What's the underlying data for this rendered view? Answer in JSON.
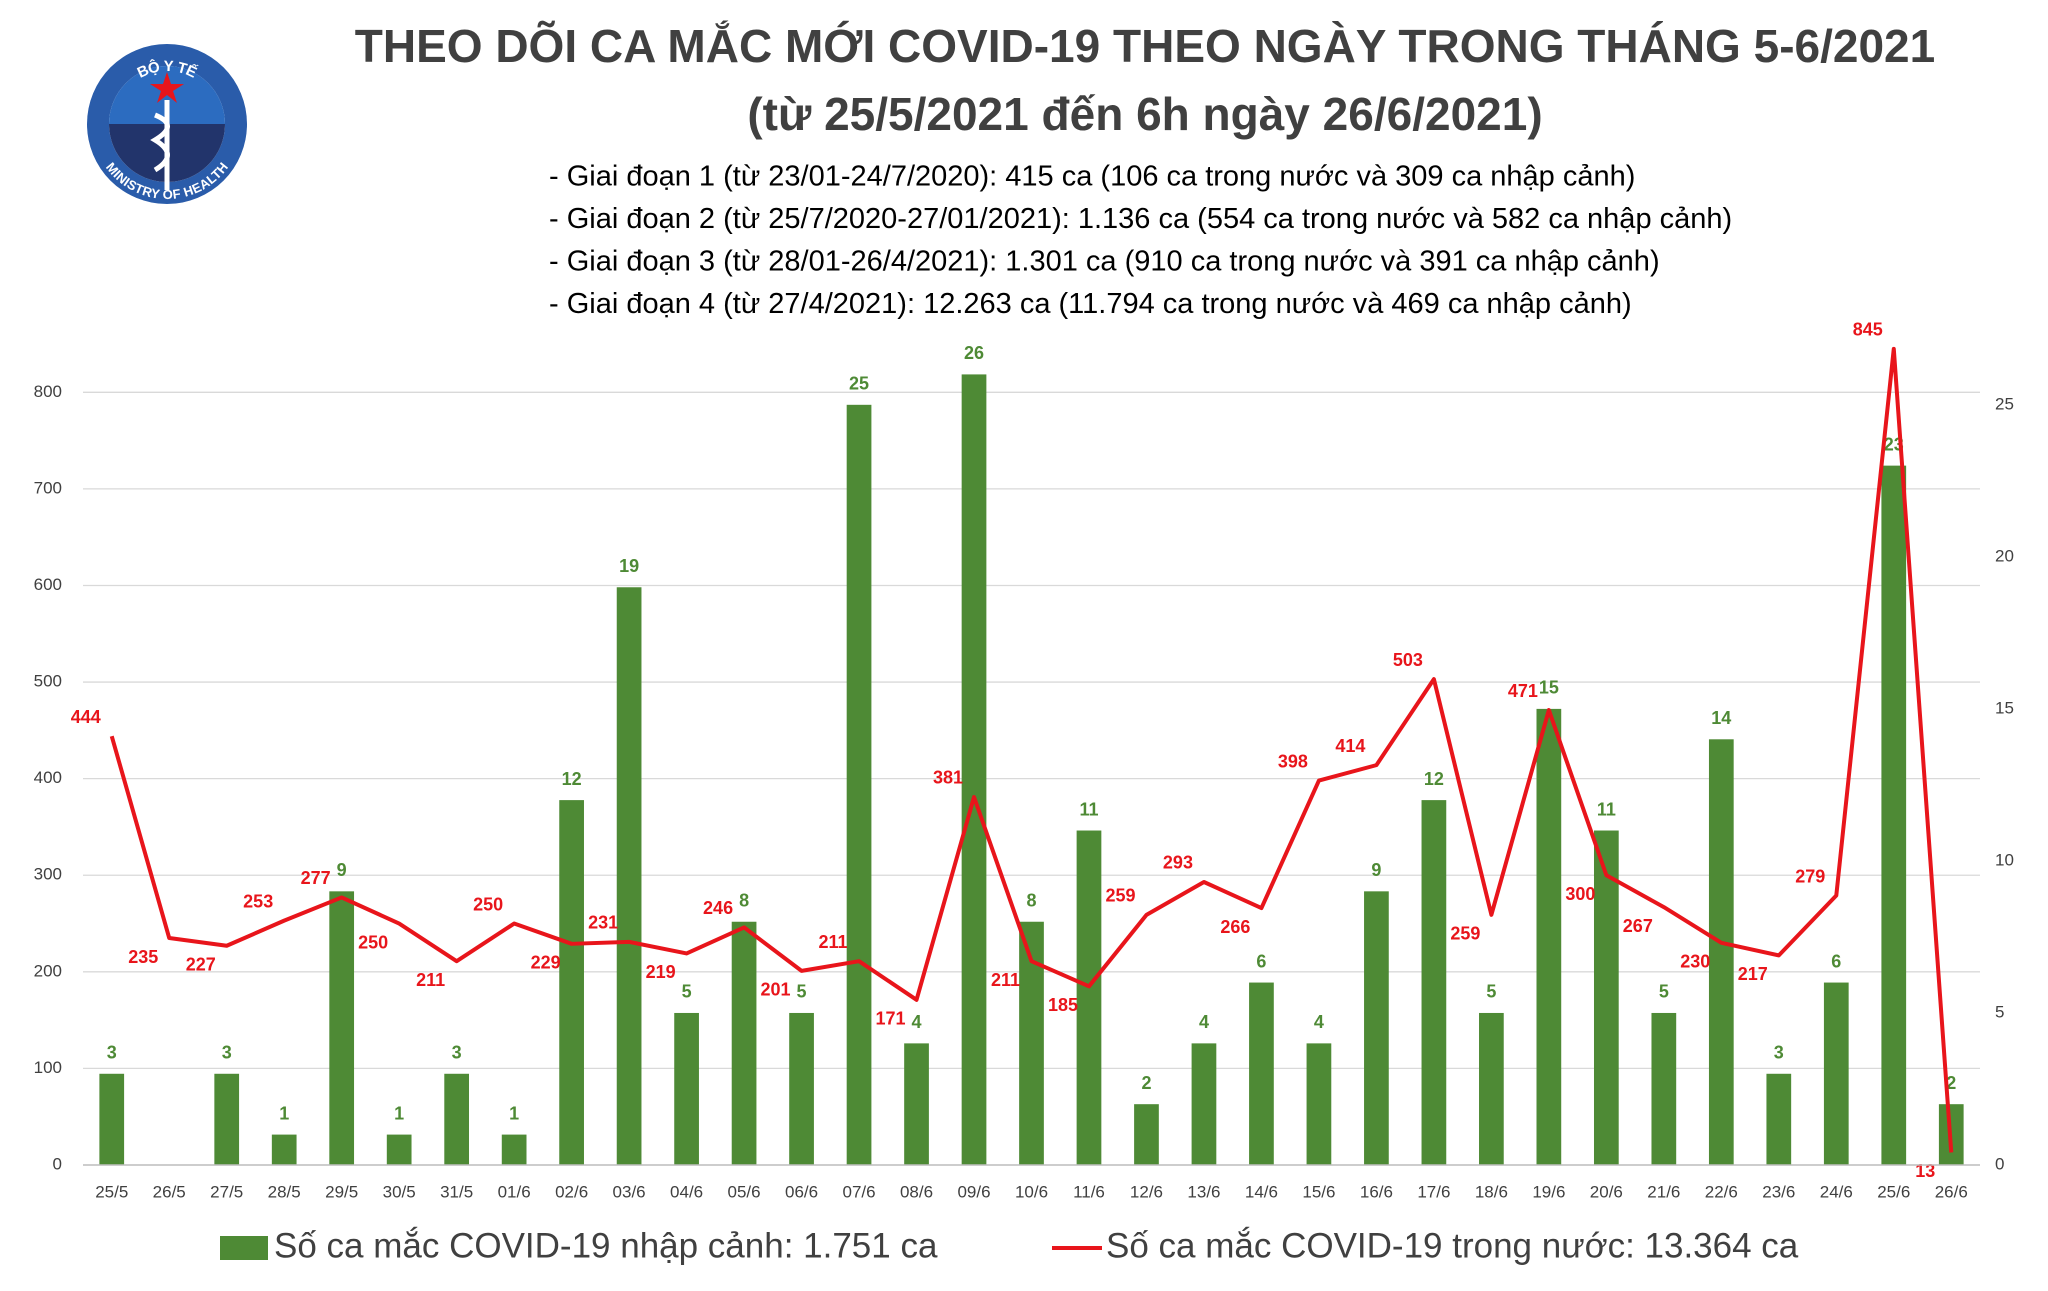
{
  "logo": {
    "top_text": "BỘ Y TẾ",
    "bottom_text": "MINISTRY OF HEALTH"
  },
  "chart_data": {
    "type": "combo",
    "title": "THEO DÕI CA MẮC MỚI COVID-19 THEO NGÀY TRONG THÁNG 5-6/2021",
    "subtitle": "(từ 25/5/2021 đến 6h ngày 26/6/2021)",
    "notes": [
      "- Giai đoạn 1 (từ 23/01-24/7/2020): 415 ca (106 ca trong nước và 309 ca nhập cảnh)",
      "- Giai đoạn 2 (từ 25/7/2020-27/01/2021): 1.136 ca (554 ca trong nước và 582 ca nhập cảnh)",
      "- Giai đoạn 3 (từ 28/01-26/4/2021): 1.301 ca (910 ca trong nước và 391 ca nhập cảnh)",
      "- Giai đoạn 4 (từ 27/4/2021): 12.263 ca (11.794 ca trong nước và 469 ca nhập cảnh)"
    ],
    "categories": [
      "25/5",
      "26/5",
      "27/5",
      "28/5",
      "29/5",
      "30/5",
      "31/5",
      "01/6",
      "02/6",
      "03/6",
      "04/6",
      "05/6",
      "06/6",
      "07/6",
      "08/6",
      "09/6",
      "10/6",
      "11/6",
      "12/6",
      "13/6",
      "14/6",
      "15/6",
      "16/6",
      "17/6",
      "18/6",
      "19/6",
      "20/6",
      "21/6",
      "22/6",
      "23/6",
      "24/6",
      "25/6",
      "26/6"
    ],
    "series": [
      {
        "name": "Số ca mắc COVID-19 nhập cảnh: 1.751 ca",
        "type": "bar",
        "axis": "y2",
        "color": "#4e8a35",
        "values": [
          3,
          null,
          3,
          1,
          9,
          1,
          3,
          1,
          12,
          19,
          5,
          8,
          5,
          25,
          4,
          26,
          8,
          11,
          2,
          4,
          6,
          4,
          9,
          12,
          5,
          15,
          11,
          5,
          14,
          3,
          6,
          23,
          2
        ]
      },
      {
        "name": "Số ca mắc COVID-19 trong nước: 13.364 ca",
        "type": "line",
        "color": "#e8151b",
        "values": [
          444,
          235,
          227,
          253,
          277,
          250,
          211,
          250,
          229,
          231,
          219,
          246,
          201,
          211,
          171,
          381,
          211,
          185,
          259,
          293,
          266,
          398,
          414,
          503,
          259,
          471,
          300,
          267,
          230,
          217,
          279,
          845,
          13
        ]
      }
    ],
    "ylim": [
      0,
      850
    ],
    "yticks": [
      0,
      100,
      200,
      300,
      400,
      500,
      600,
      700,
      800
    ],
    "y2lim": [
      0,
      27
    ],
    "y2ticks": [
      0,
      5,
      10,
      15,
      20,
      25
    ],
    "grid": true
  }
}
